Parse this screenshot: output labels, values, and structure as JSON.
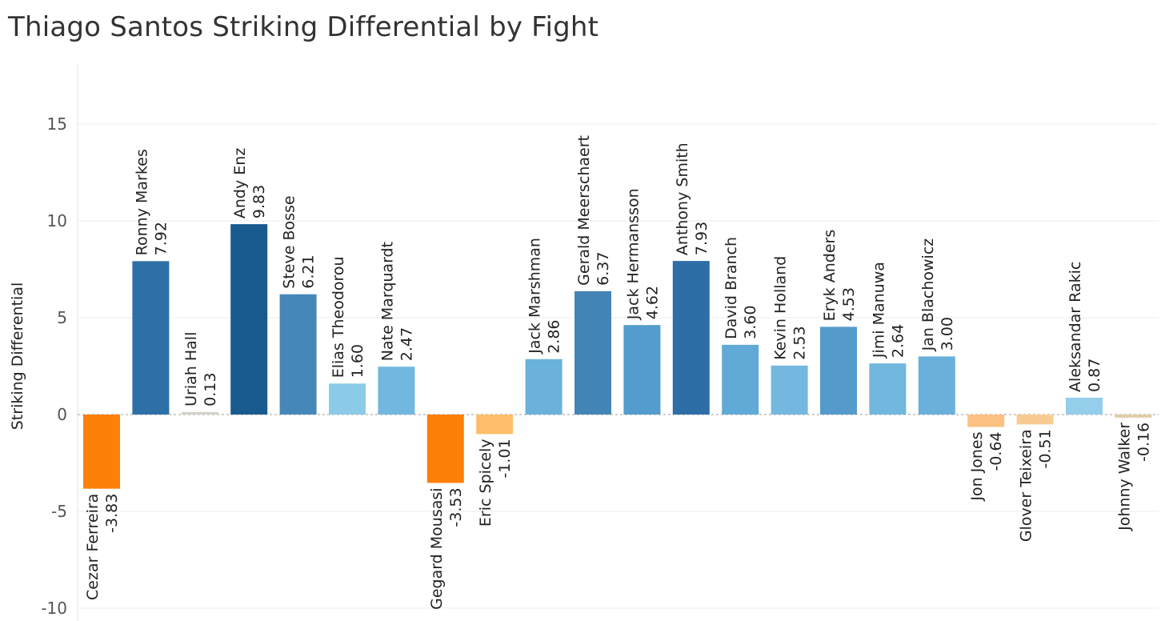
{
  "title": "Thiago Santos Striking Differential by Fight",
  "chart_data": {
    "type": "bar",
    "title": "Thiago Santos Striking Differential by Fight",
    "xlabel": "",
    "ylabel": "Striking Differential",
    "ylim": [
      -10,
      17
    ],
    "yticks": [
      15,
      10,
      5,
      0,
      -5,
      -10
    ],
    "grid": true,
    "legend": "none",
    "categories": [
      "Cezar Ferreira",
      "Ronny Markes",
      "Uriah Hall",
      "Andy Enz",
      "Steve Bosse",
      "Elias Theodorou",
      "Nate Marquardt",
      "Gegard Mousasi",
      "Eric Spicely",
      "Jack Marshman",
      "Gerald Meerschaert",
      "Jack Hermansson",
      "Anthony Smith",
      "David Branch",
      "Kevin Holland",
      "Eryk Anders",
      "Jimi Manuwa",
      "Jan Blachowicz",
      "Jon Jones",
      "Glover Teixeira",
      "Aleksandar Rakic",
      "Johnny Walker"
    ],
    "values": [
      -3.83,
      7.92,
      0.13,
      9.83,
      6.21,
      1.6,
      2.47,
      -3.53,
      -1.01,
      2.86,
      6.37,
      4.62,
      7.93,
      3.6,
      2.53,
      4.53,
      2.64,
      3.0,
      -0.64,
      -0.51,
      0.87,
      -0.16
    ],
    "value_labels": [
      "-3.83",
      "7.92",
      "0.13",
      "9.83",
      "6.21",
      "1.60",
      "2.47",
      "-3.53",
      "-1.01",
      "2.86",
      "6.37",
      "4.62",
      "7.93",
      "3.60",
      "2.53",
      "4.53",
      "2.64",
      "3.00",
      "-0.64",
      "-0.51",
      "0.87",
      "-0.16"
    ],
    "colors": [
      "#fd8009",
      "#2e6fa8",
      "#d6d2c8",
      "#1a5b8f",
      "#4687b9",
      "#8ccbe8",
      "#71b7de",
      "#fd8009",
      "#fdbd6b",
      "#6ab2db",
      "#4485b7",
      "#549ccd",
      "#2d6ea7",
      "#61a9d6",
      "#74b8df",
      "#549bcc",
      "#72b7de",
      "#69b1da",
      "#fcc182",
      "#f8cb93",
      "#95ceea",
      "#e2cca7"
    ]
  }
}
